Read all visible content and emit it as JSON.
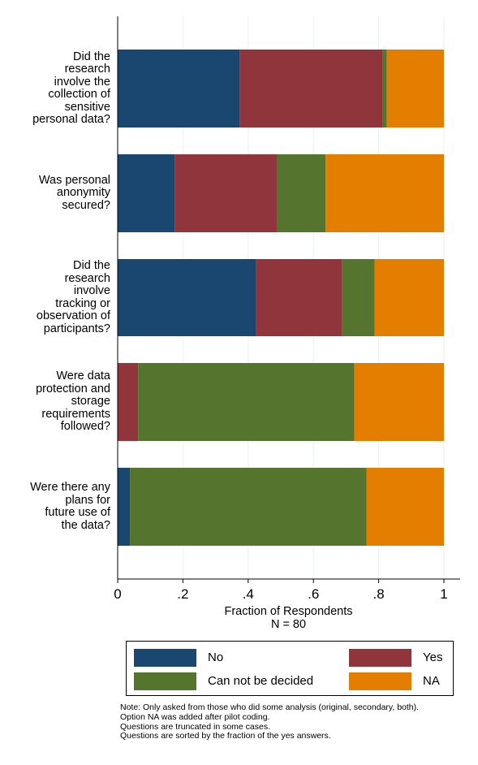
{
  "chart_data": {
    "type": "bar",
    "orientation": "horizontal",
    "stacked": true,
    "categories": [
      "Did the research involve the collection of sensitive personal data?",
      "Was personal anonymity secured?",
      "Did the research involve tracking or observation of participants?",
      "Were data protection and storage requirements followed?",
      "Were there any plans for future use of the data?"
    ],
    "category_lines": [
      [
        "Did the",
        "research",
        "involve the",
        "collection of",
        "sensitive",
        "personal data?"
      ],
      [
        "Was personal",
        "anonymity",
        "secured?"
      ],
      [
        "Did the",
        "research",
        "involve",
        "tracking or",
        "observation of",
        "participants?"
      ],
      [
        "Were data",
        "protection and",
        "storage",
        "requirements",
        "followed?"
      ],
      [
        "Were there any",
        "plans for",
        "future use of",
        "the data?"
      ]
    ],
    "series": [
      {
        "name": "No",
        "color": "#1a476f",
        "values": [
          0.375,
          0.175,
          0.425,
          0.0,
          0.0375
        ]
      },
      {
        "name": "Yes",
        "color": "#90353b",
        "values": [
          0.4375,
          0.3125,
          0.2625,
          0.0625,
          0.0
        ]
      },
      {
        "name": "Can not be decided",
        "color": "#55752f",
        "values": [
          0.0125,
          0.15,
          0.1,
          0.6625,
          0.725
        ]
      },
      {
        "name": "NA",
        "color": "#e37e00",
        "values": [
          0.175,
          0.3625,
          0.2125,
          0.275,
          0.2375
        ]
      }
    ],
    "xlim": [
      0,
      1
    ],
    "xticks": [
      0,
      0.2,
      0.4,
      0.6,
      0.8,
      1
    ],
    "xtick_labels": [
      "0",
      ".2",
      ".4",
      ".6",
      ".8",
      "1"
    ],
    "xlabel": "Fraction of Respondents",
    "xlabel_sub": "N = 80",
    "grid": true,
    "legend_position": "bottom",
    "note_lines": [
      "Note: Only asked from those who did some analysis (original, secondary, both).",
      "Option NA was added after pilot coding.",
      "Questions are truncated in some cases.",
      "Questions are sorted by the fraction of the yes answers."
    ]
  }
}
